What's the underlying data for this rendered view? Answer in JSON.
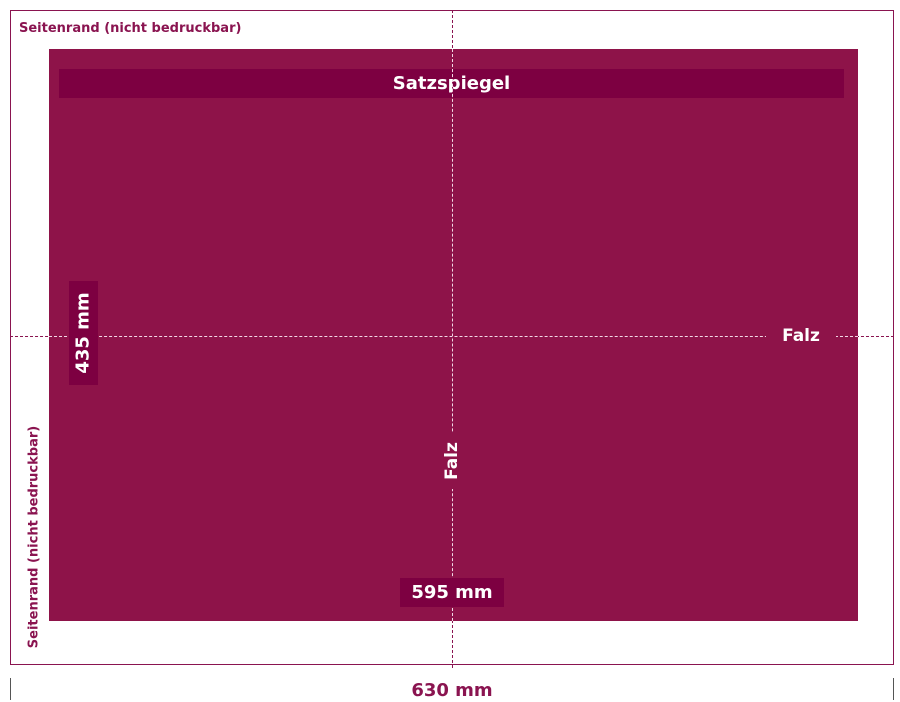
{
  "margin": {
    "label_top": "Seitenrand (nicht bedruckbar)",
    "label_left": "Seitenrand (nicht bedruckbar)"
  },
  "type_area": {
    "label": "Satzspiegel"
  },
  "fold": {
    "horizontal_label": "Falz",
    "vertical_label": "Falz"
  },
  "dimensions": {
    "type_area_height": "435 mm",
    "type_area_width": "595 mm",
    "page_width": "630 mm"
  },
  "colors": {
    "type_area_fill": "#8e1349",
    "label_fill": "#7d0041",
    "accent_text": "#8a1450",
    "fold_line_on_fill": "#f2d8e4"
  }
}
